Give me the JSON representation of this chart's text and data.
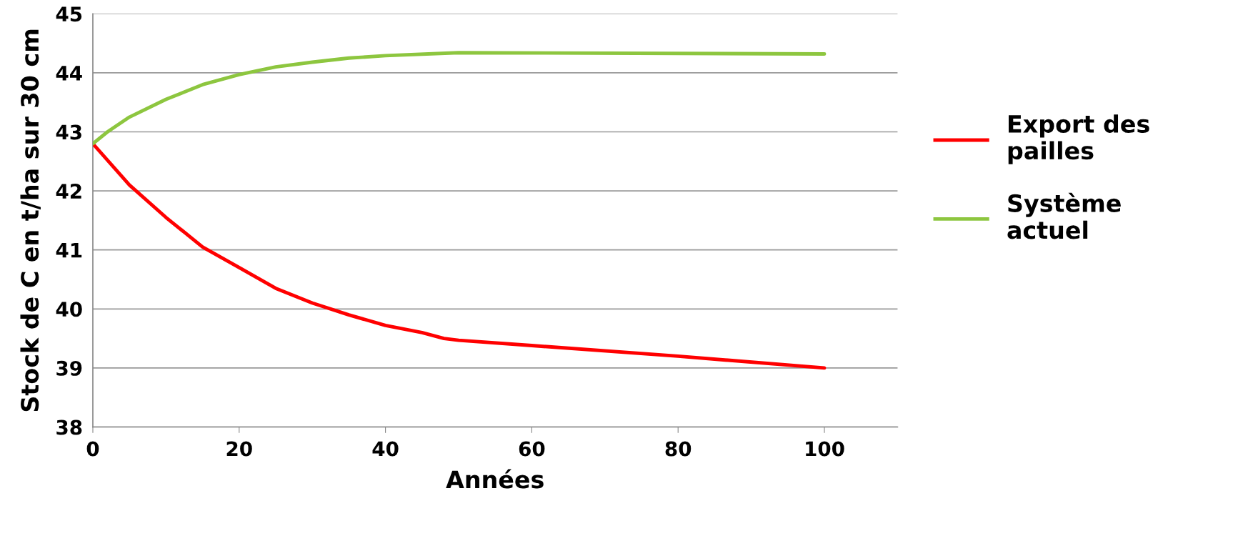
{
  "chart_data": {
    "type": "line",
    "xlabel": "Années",
    "ylabel": "Stock de C en t/ha sur 30 cm",
    "xlim": [
      0,
      110
    ],
    "xticks": [
      0,
      20,
      40,
      60,
      80,
      100
    ],
    "ylim": [
      38,
      45
    ],
    "yticks": [
      38,
      39,
      40,
      41,
      42,
      43,
      44,
      45
    ],
    "grid": "y",
    "legend": "right",
    "marker": "none",
    "line_style": "solid",
    "series": [
      {
        "name": "Export des pailles",
        "color": "#ff0000",
        "x": [
          0,
          5,
          10,
          15,
          20,
          25,
          30,
          35,
          40,
          45,
          48,
          50,
          60,
          80,
          100
        ],
        "values": [
          42.8,
          42.1,
          41.55,
          41.05,
          40.7,
          40.35,
          40.1,
          39.9,
          39.72,
          39.6,
          39.5,
          39.47,
          39.38,
          39.2,
          39.0
        ]
      },
      {
        "name": "Système actuel",
        "color": "#8dc63f",
        "x": [
          0,
          2,
          5,
          10,
          15,
          20,
          25,
          30,
          35,
          40,
          50,
          100
        ],
        "values": [
          42.8,
          43.0,
          43.25,
          43.55,
          43.8,
          43.97,
          44.1,
          44.18,
          44.25,
          44.29,
          44.34,
          44.32
        ]
      }
    ]
  }
}
